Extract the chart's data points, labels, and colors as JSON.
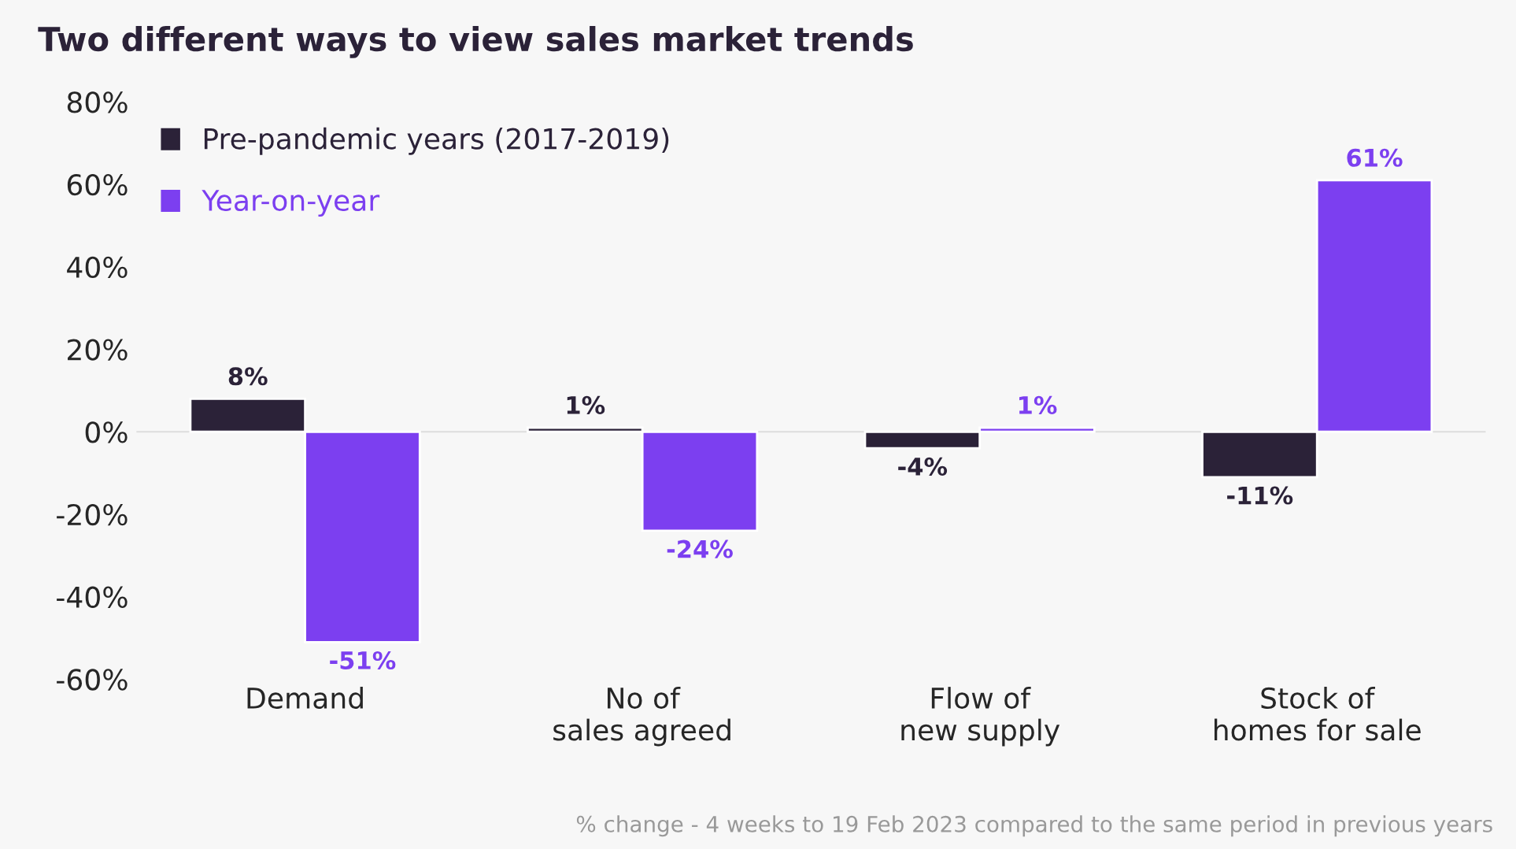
{
  "chart_data": {
    "type": "bar",
    "title": "Two different ways to view sales market trends",
    "categories": [
      "Demand",
      "No of\nsales agreed",
      "Flow of\nnew supply",
      "Stock of\nhomes for sale"
    ],
    "series": [
      {
        "name": "Pre-pandemic years (2017-2019)",
        "color": "#2b2238",
        "values": [
          8,
          1,
          -4,
          -11
        ],
        "value_labels": [
          "8%",
          "1%",
          "-4%",
          "-11%"
        ]
      },
      {
        "name": "Year-on-year",
        "color": "#7c3ff0",
        "values": [
          -51,
          -24,
          1,
          61
        ],
        "value_labels": [
          "-51%",
          "-24%",
          "1%",
          "61%"
        ]
      }
    ],
    "ylim": [
      -60,
      80
    ],
    "yticks": [
      {
        "value": -60,
        "label": "-60%"
      },
      {
        "value": -40,
        "label": "-40%"
      },
      {
        "value": -20,
        "label": "-20%"
      },
      {
        "value": 0,
        "label": "0%"
      },
      {
        "value": 20,
        "label": "20%"
      },
      {
        "value": 40,
        "label": "40%"
      },
      {
        "value": 60,
        "label": "60%"
      },
      {
        "value": 80,
        "label": "80%"
      }
    ],
    "grid": false,
    "legend": "top left",
    "ref_lines": [
      {
        "axis": "y",
        "value": 0,
        "color": "#dddddd"
      }
    ],
    "annotations": [
      "% change - 4 weeks to 19 Feb 2023 compared to the same period in previous years"
    ]
  }
}
